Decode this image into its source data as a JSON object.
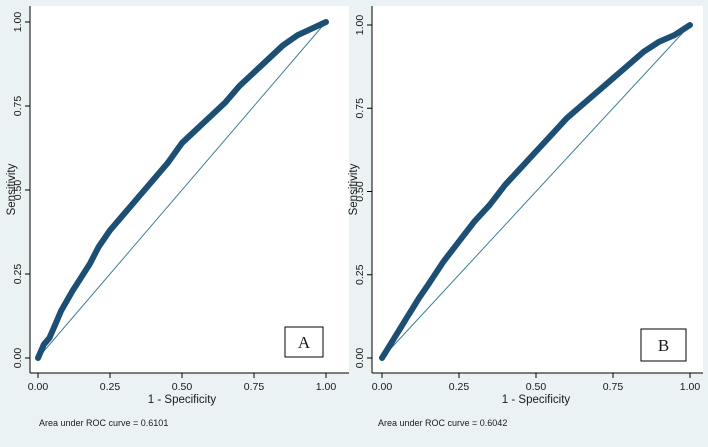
{
  "colors": {
    "background": "#eaf2f3",
    "plot_region": "#ffffff",
    "curve": "#1c4f73",
    "reference_line": "#3f7f95",
    "axis": "#000000"
  },
  "chart_data": [
    {
      "type": "line",
      "panel_label": "A",
      "xlabel": "1 - Specificity",
      "ylabel": "Sensitivity",
      "xlim": [
        0,
        1
      ],
      "ylim": [
        0,
        1
      ],
      "x_ticks": [
        "0.00",
        "0.25",
        "0.50",
        "0.75",
        "1.00"
      ],
      "y_ticks": [
        "0.00",
        "0.25",
        "0.50",
        "0.75",
        "1.00"
      ],
      "grid": false,
      "auc_note": "Area under ROC curve = 0.6101",
      "series": [
        {
          "x": [
            0,
            0.01,
            0.02,
            0.04,
            0.05,
            0.06,
            0.07,
            0.08,
            0.1,
            0.12,
            0.15,
            0.18,
            0.21,
            0.25,
            0.3,
            0.35,
            0.4,
            0.45,
            0.5,
            0.55,
            0.6,
            0.65,
            0.7,
            0.75,
            0.8,
            0.85,
            0.9,
            0.95,
            1
          ],
          "y": [
            0,
            0.02,
            0.04,
            0.06,
            0.08,
            0.1,
            0.12,
            0.14,
            0.17,
            0.2,
            0.24,
            0.28,
            0.33,
            0.38,
            0.43,
            0.48,
            0.53,
            0.58,
            0.64,
            0.68,
            0.72,
            0.76,
            0.81,
            0.85,
            0.89,
            0.93,
            0.96,
            0.98,
            1
          ]
        },
        {
          "x": [
            0,
            1
          ],
          "y": [
            0,
            1
          ]
        }
      ]
    },
    {
      "type": "line",
      "panel_label": "B",
      "xlabel": "1 - Specificity",
      "ylabel": "Sensitivity",
      "xlim": [
        0,
        1
      ],
      "ylim": [
        0,
        1
      ],
      "x_ticks": [
        "0.00",
        "0.25",
        "0.50",
        "0.75",
        "1.00"
      ],
      "y_ticks": [
        "0.00",
        "0.25",
        "0.50",
        "0.75",
        "1.00"
      ],
      "grid": false,
      "auc_note": "Area under ROC curve = 0.6042",
      "series": [
        {
          "x": [
            0,
            0.02,
            0.04,
            0.06,
            0.08,
            0.1,
            0.12,
            0.15,
            0.2,
            0.25,
            0.3,
            0.35,
            0.4,
            0.45,
            0.5,
            0.55,
            0.6,
            0.65,
            0.7,
            0.75,
            0.8,
            0.85,
            0.9,
            0.95,
            1
          ],
          "y": [
            0,
            0.03,
            0.06,
            0.09,
            0.12,
            0.15,
            0.18,
            0.22,
            0.29,
            0.35,
            0.41,
            0.46,
            0.52,
            0.57,
            0.62,
            0.67,
            0.72,
            0.76,
            0.8,
            0.84,
            0.88,
            0.92,
            0.95,
            0.97,
            1
          ]
        },
        {
          "x": [
            0,
            1
          ],
          "y": [
            0,
            1
          ]
        }
      ]
    }
  ]
}
